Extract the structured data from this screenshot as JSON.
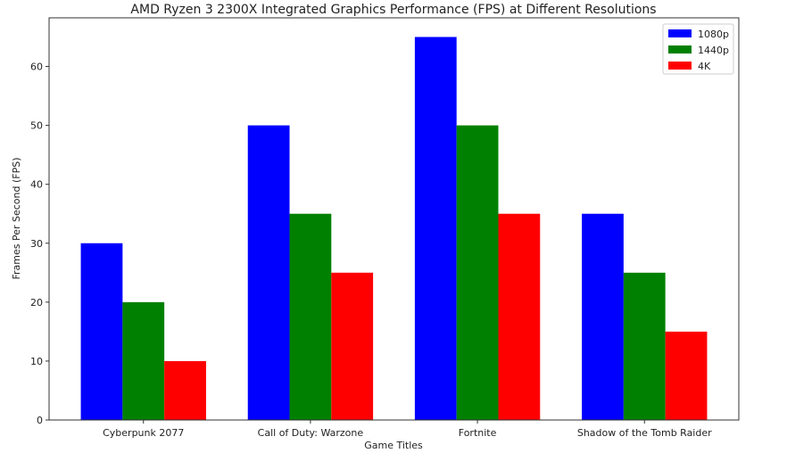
{
  "chart_data": {
    "type": "bar",
    "title": "AMD Ryzen 3 2300X Integrated Graphics Performance (FPS) at Different Resolutions",
    "xlabel": "Game Titles",
    "ylabel": "Frames Per Second (FPS)",
    "categories": [
      "Cyberpunk 2077",
      "Call of Duty: Warzone",
      "Fortnite",
      "Shadow of the Tomb Raider"
    ],
    "series": [
      {
        "name": "1080p",
        "color": "#0000ff",
        "values": [
          30,
          50,
          65,
          35
        ]
      },
      {
        "name": "1440p",
        "color": "#008000",
        "values": [
          20,
          35,
          50,
          25
        ]
      },
      {
        "name": "4K",
        "color": "#ff0000",
        "values": [
          10,
          25,
          35,
          15
        ]
      }
    ],
    "ylim": [
      0,
      68.25
    ],
    "yticks": [
      0,
      10,
      20,
      30,
      40,
      50,
      60
    ],
    "grid": false,
    "legend": "top-right"
  }
}
